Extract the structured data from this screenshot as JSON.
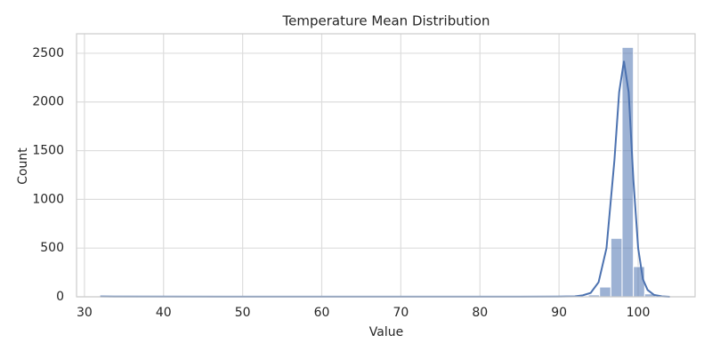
{
  "chart_data": {
    "type": "histogram",
    "title": "Temperature Mean Distribution",
    "x_label": "Value",
    "y_label": "Count",
    "bins": [
      32.55,
      33.97,
      35.39,
      36.82,
      38.24,
      39.66,
      41.08,
      42.51,
      43.93,
      45.35,
      46.77,
      48.19,
      49.62,
      51.04,
      52.46,
      53.88,
      55.31,
      56.73,
      58.15,
      59.57,
      61.0,
      62.42,
      63.84,
      65.26,
      66.68,
      68.11,
      69.53,
      70.95,
      72.37,
      73.8,
      75.22,
      76.64,
      78.06,
      79.48,
      80.91,
      82.33,
      83.75,
      85.17,
      86.6,
      88.02,
      89.44,
      90.86,
      92.28,
      93.71,
      95.13,
      96.55,
      97.97,
      99.4,
      100.82,
      102.24,
      103.66
    ],
    "values": [
      2,
      0,
      0,
      0,
      1,
      0,
      0,
      1,
      0,
      0,
      1,
      0,
      0,
      1,
      0,
      0,
      1,
      0,
      0,
      1,
      0,
      0,
      1,
      0,
      0,
      1,
      0,
      0,
      1,
      0,
      0,
      1,
      0,
      1,
      0,
      1,
      1,
      1,
      1,
      1,
      1,
      3,
      8,
      20,
      100,
      600,
      2560,
      310,
      30,
      6
    ],
    "color": "#4c72b0",
    "kde": {
      "x": [
        32,
        50,
        70,
        85,
        90,
        92,
        93,
        94,
        95,
        96,
        97,
        97.6,
        98.2,
        98.8,
        99.4,
        100,
        100.6,
        101.2,
        102,
        103,
        104
      ],
      "values": [
        3,
        1,
        1,
        1,
        2,
        5,
        15,
        40,
        150,
        500,
        1400,
        2100,
        2420,
        2100,
        1200,
        500,
        180,
        70,
        20,
        5,
        0
      ],
      "color": "#4c72b0"
    },
    "xlim": [
      29,
      107.2
    ],
    "xticks": [
      30,
      40,
      50,
      60,
      70,
      80,
      90,
      100
    ],
    "ylim": [
      0,
      2700
    ],
    "yticks": [
      0,
      500,
      1000,
      1500,
      2000,
      2500
    ],
    "grid": true
  }
}
